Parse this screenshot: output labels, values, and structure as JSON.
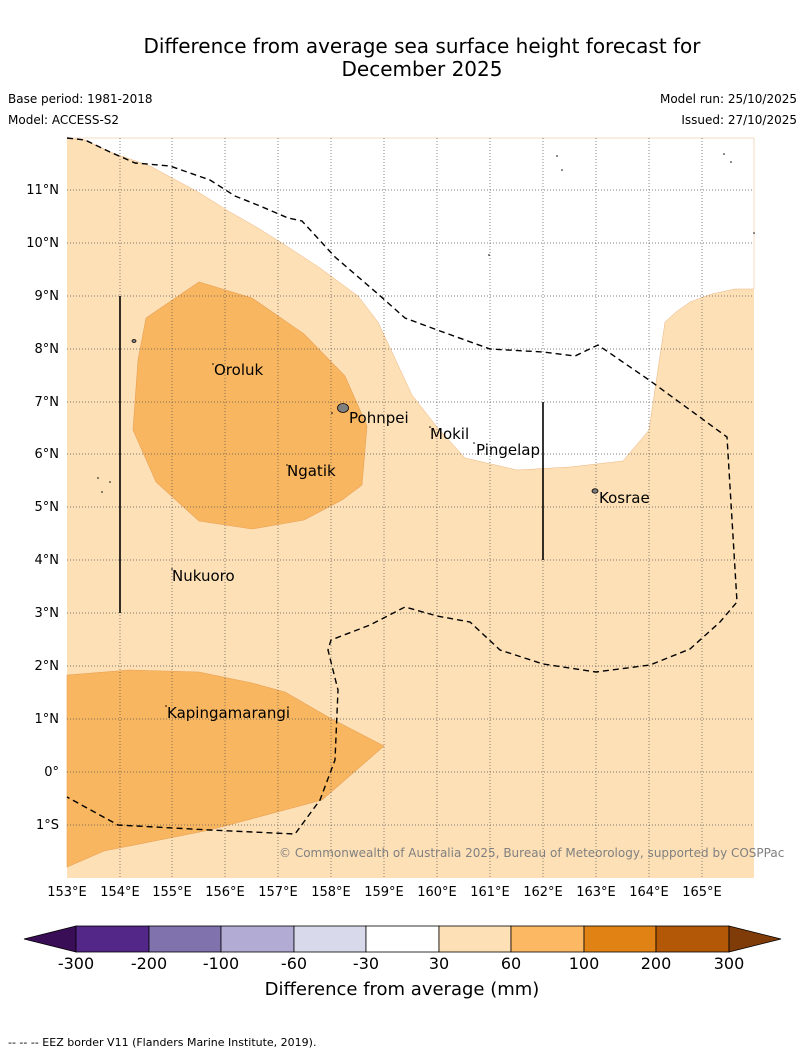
{
  "title": {
    "line1": "Difference from average sea surface height forecast for",
    "line2": "December 2025"
  },
  "meta": {
    "base_period": "Base period: 1981-2018",
    "model": "Model: ACCESS-S2",
    "model_run": "Model run: 25/10/2025",
    "issued": "Issued: 27/10/2025"
  },
  "map": {
    "longitude_labels": [
      "153°E",
      "154°E",
      "155°E",
      "156°E",
      "157°E",
      "158°E",
      "159°E",
      "160°E",
      "161°E",
      "162°E",
      "163°E",
      "164°E",
      "165°E"
    ],
    "latitude_labels": [
      "11°N",
      "10°N",
      "9°N",
      "8°N",
      "7°N",
      "6°N",
      "5°N",
      "4°N",
      "3°N",
      "2°N",
      "1°N",
      "0°",
      "1°S"
    ],
    "places": [
      "Oroluk",
      "Pohnpei",
      "Mokil",
      "Pingelap",
      "Ngatik",
      "Kosrae",
      "Nukuoro",
      "Kapingamarangi"
    ],
    "copyright": "© Commonwealth of Australia 2025, Bureau of Meteorology, supported by COSPPac",
    "colors": {
      "bin_30_60": "#fde0b6",
      "bin_60_100": "#f9b660",
      "land": "#808080",
      "eez": "#000000"
    }
  },
  "colorbar": {
    "ticks": [
      "-300",
      "-200",
      "-100",
      "-60",
      "-30",
      "30",
      "60",
      "100",
      "200",
      "300"
    ],
    "label": "Difference from average (mm)",
    "colors": [
      "#3a0d57",
      "#532788",
      "#7f72ad",
      "#b2abd3",
      "#d8daeb",
      "#ffffff",
      "#fee0b6",
      "#fdb863",
      "#e08214",
      "#b35806",
      "#7f3b08"
    ]
  },
  "footnote": "--  --  -- EEZ border V11 (Flanders Marine Institute, 2019)."
}
